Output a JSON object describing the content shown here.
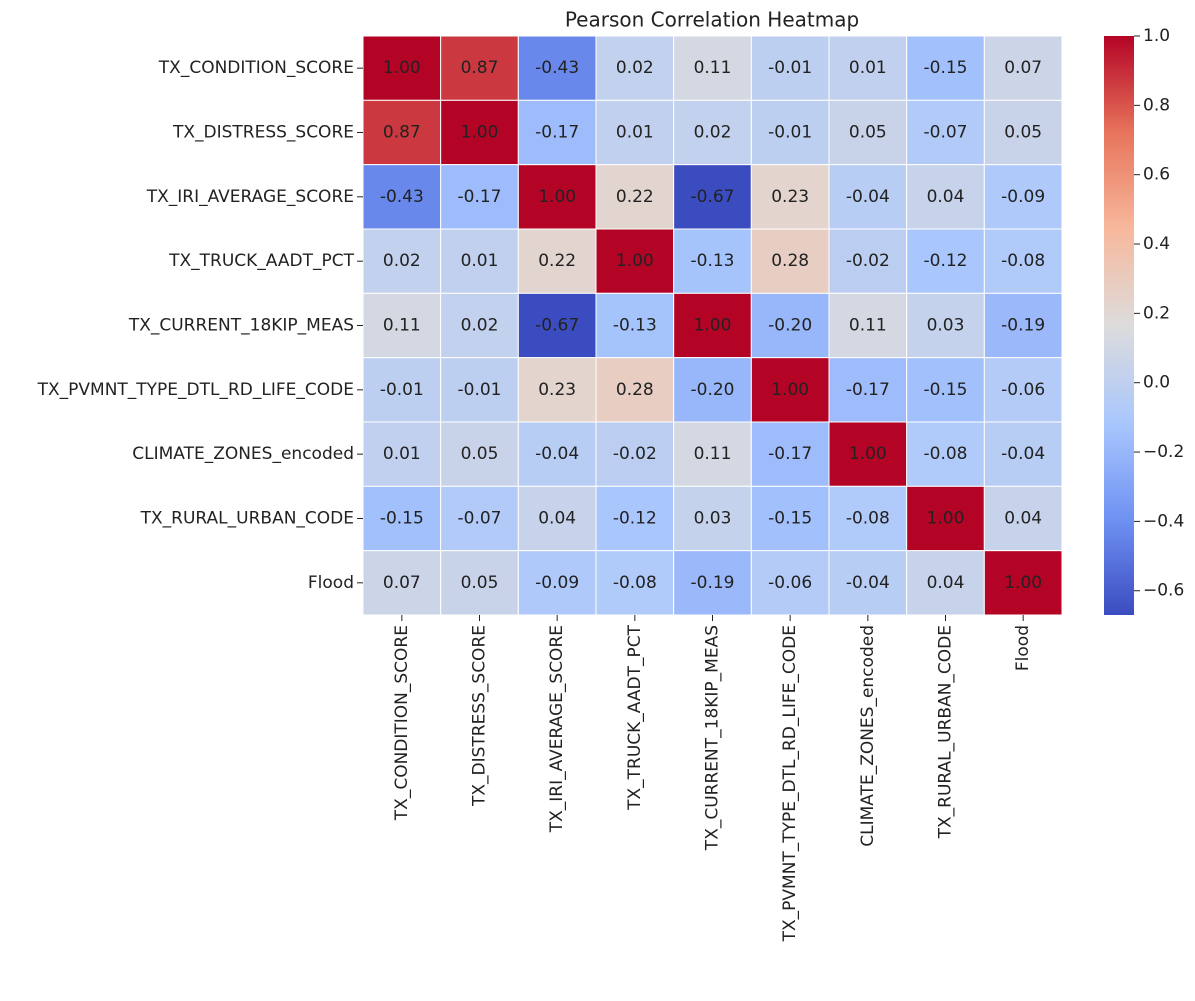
{
  "chart_data": {
    "type": "heatmap",
    "title": "Pearson Correlation Heatmap",
    "x_categories": [
      "TX_CONDITION_SCORE",
      "TX_DISTRESS_SCORE",
      "TX_IRI_AVERAGE_SCORE",
      "TX_TRUCK_AADT_PCT",
      "TX_CURRENT_18KIP_MEAS",
      "TX_PVMNT_TYPE_DTL_RD_LIFE_CODE",
      "CLIMATE_ZONES_encoded",
      "TX_RURAL_URBAN_CODE",
      "Flood"
    ],
    "y_categories": [
      "TX_CONDITION_SCORE",
      "TX_DISTRESS_SCORE",
      "TX_IRI_AVERAGE_SCORE",
      "TX_TRUCK_AADT_PCT",
      "TX_CURRENT_18KIP_MEAS",
      "TX_PVMNT_TYPE_DTL_RD_LIFE_CODE",
      "CLIMATE_ZONES_encoded",
      "TX_RURAL_URBAN_CODE",
      "Flood"
    ],
    "values": [
      [
        1.0,
        0.87,
        -0.43,
        0.02,
        0.11,
        -0.01,
        0.01,
        -0.15,
        0.07
      ],
      [
        0.87,
        1.0,
        -0.17,
        0.01,
        0.02,
        -0.01,
        0.05,
        -0.07,
        0.05
      ],
      [
        -0.43,
        -0.17,
        1.0,
        0.22,
        -0.67,
        0.23,
        -0.04,
        0.04,
        -0.09
      ],
      [
        0.02,
        0.01,
        0.22,
        1.0,
        -0.13,
        0.28,
        -0.02,
        -0.12,
        -0.08
      ],
      [
        0.11,
        0.02,
        -0.67,
        -0.13,
        1.0,
        -0.2,
        0.11,
        0.03,
        -0.19
      ],
      [
        -0.01,
        -0.01,
        0.23,
        0.28,
        -0.2,
        1.0,
        -0.17,
        -0.15,
        -0.06
      ],
      [
        0.01,
        0.05,
        -0.04,
        -0.02,
        0.11,
        -0.17,
        1.0,
        -0.08,
        -0.04
      ],
      [
        -0.15,
        -0.07,
        0.04,
        -0.12,
        0.03,
        -0.15,
        -0.08,
        1.0,
        0.04
      ],
      [
        0.07,
        0.05,
        -0.09,
        -0.08,
        -0.19,
        -0.06,
        -0.04,
        0.04,
        1.0
      ]
    ],
    "value_labels": [
      [
        "1.00",
        "0.87",
        "-0.43",
        "0.02",
        "0.11",
        "-0.01",
        "0.01",
        "-0.15",
        "0.07"
      ],
      [
        "0.87",
        "1.00",
        "-0.17",
        "0.01",
        "0.02",
        "-0.01",
        "0.05",
        "-0.07",
        "0.05"
      ],
      [
        "-0.43",
        "-0.17",
        "1.00",
        "0.22",
        "-0.67",
        "0.23",
        "-0.04",
        "0.04",
        "-0.09"
      ],
      [
        "0.02",
        "0.01",
        "0.22",
        "1.00",
        "-0.13",
        "0.28",
        "-0.02",
        "-0.12",
        "-0.08"
      ],
      [
        "0.11",
        "0.02",
        "-0.67",
        "-0.13",
        "1.00",
        "-0.20",
        "0.11",
        "0.03",
        "-0.19"
      ],
      [
        "-0.01",
        "-0.01",
        "0.23",
        "0.28",
        "-0.20",
        "1.00",
        "-0.17",
        "-0.15",
        "-0.06"
      ],
      [
        "0.01",
        "0.05",
        "-0.04",
        "-0.02",
        "0.11",
        "-0.17",
        "1.00",
        "-0.08",
        "-0.04"
      ],
      [
        "-0.15",
        "-0.07",
        "0.04",
        "-0.12",
        "0.03",
        "-0.15",
        "-0.08",
        "1.00",
        "0.04"
      ],
      [
        "0.07",
        "0.05",
        "-0.09",
        "-0.08",
        "-0.19",
        "-0.06",
        "-0.04",
        "0.04",
        "1.00"
      ]
    ],
    "zlim": [
      -0.67,
      1.0
    ],
    "zticks": [
      {
        "value": 1.0,
        "label": "1.0"
      },
      0.8,
      0.6,
      0.4,
      0.2,
      {
        "value": 0,
        "label": "0.0"
      },
      {
        "value": -0.2,
        "label": "−0.2"
      },
      {
        "value": -0.4,
        "label": "−0.4"
      },
      {
        "value": -0.6,
        "label": "−0.6"
      }
    ],
    "colormap": [
      "#3b4cc0",
      "#6f92f3",
      "#aac7fd",
      "#dddcdc",
      "#f7b89c",
      "#e7745b",
      "#b40426"
    ]
  }
}
